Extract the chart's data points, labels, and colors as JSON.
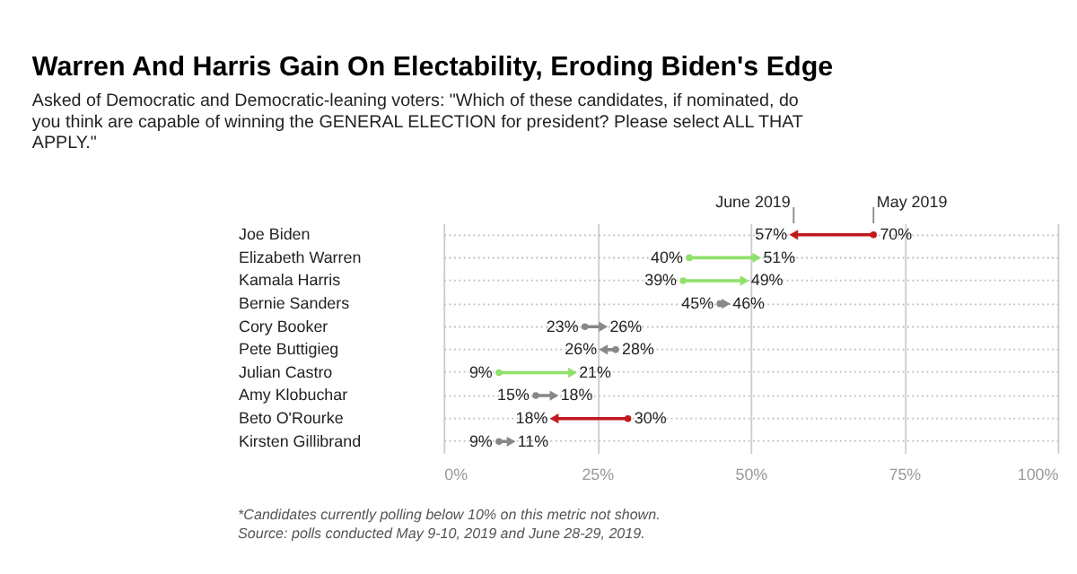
{
  "chart_data": {
    "type": "scatter",
    "orientation": "horizontal",
    "title": "Warren And Harris Gain On Electability, Eroding Biden's Edge",
    "subtitle": "Asked of Democratic and Democratic-leaning voters: \"Which of these candidates, if nominated, do you think are capable of winning the GENERAL ELECTION for president? Please select ALL THAT APPLY.\"",
    "categories": [
      "Joe Biden",
      "Elizabeth Warren",
      "Kamala Harris",
      "Bernie Sanders",
      "Cory Booker",
      "Pete Buttigieg",
      "Julian Castro",
      "Amy Klobuchar",
      "Beto O'Rourke",
      "Kirsten Gillibrand"
    ],
    "series": [
      {
        "name": "May 2019",
        "marker": "circle",
        "values": [
          70,
          40,
          39,
          45,
          23,
          28,
          9,
          15,
          30,
          9
        ],
        "value_labels": [
          "70%",
          "40%",
          "39%",
          "45%",
          "23%",
          "28%",
          "9%",
          "15%",
          "30%",
          "9%"
        ],
        "colors": [
          "#c0191d",
          "#8fe16b",
          "#8fe16b",
          "#888888",
          "#888888",
          "#888888",
          "#8fe16b",
          "#888888",
          "#c0191d",
          "#888888"
        ]
      },
      {
        "name": "June 2019",
        "marker": "triangle",
        "values": [
          57,
          51,
          49,
          46,
          26,
          26,
          21,
          18,
          18,
          11
        ],
        "value_labels": [
          "57%",
          "51%",
          "49%",
          "46%",
          "26%",
          "26%",
          "21%",
          "18%",
          "18%",
          "11%"
        ],
        "colors": [
          "#c0191d",
          "#8fe16b",
          "#8fe16b",
          "#888888",
          "#888888",
          "#888888",
          "#8fe16b",
          "#888888",
          "#c0191d",
          "#888888"
        ]
      }
    ],
    "xlim": [
      0,
      100
    ],
    "xticks": [
      {
        "value": 0,
        "label": "0%"
      },
      {
        "value": 25,
        "label": "25%"
      },
      {
        "value": 50,
        "label": "50%"
      },
      {
        "value": 75,
        "label": "75%"
      },
      {
        "value": 100,
        "label": "100%"
      }
    ],
    "grid": true,
    "legend": false,
    "annotations": [
      "*Candidates currently polling below 10% on this metric not shown.",
      "Source: polls conducted May 9-10, 2019 and June 28-29, 2019."
    ]
  }
}
